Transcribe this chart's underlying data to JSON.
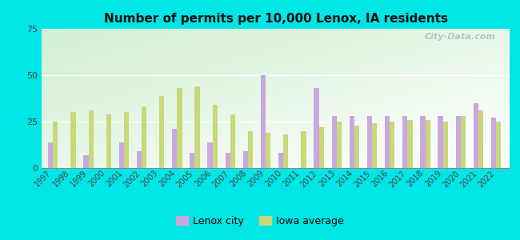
{
  "title": "Number of permits per 10,000 Lenox, IA residents",
  "years": [
    1997,
    1998,
    1999,
    2000,
    2001,
    2002,
    2003,
    2004,
    2005,
    2006,
    2007,
    2008,
    2009,
    2010,
    2011,
    2012,
    2013,
    2014,
    2015,
    2016,
    2017,
    2018,
    2019,
    2020,
    2021,
    2022
  ],
  "lenox": [
    14,
    0,
    7,
    0,
    14,
    9,
    0,
    21,
    8,
    14,
    8,
    9,
    50,
    8,
    0,
    43,
    28,
    28,
    28,
    28,
    28,
    28,
    28,
    28,
    35,
    27
  ],
  "iowa": [
    25,
    30,
    31,
    29,
    30,
    33,
    39,
    43,
    44,
    34,
    29,
    20,
    19,
    18,
    20,
    22,
    25,
    23,
    24,
    25,
    26,
    26,
    25,
    28,
    31,
    25
  ],
  "lenox_color": "#c9a8e0",
  "iowa_color": "#c8d87a",
  "outer_bg": "#00e5e5",
  "ylim": [
    0,
    75
  ],
  "yticks": [
    0,
    25,
    50,
    75
  ],
  "legend_lenox": "Lenox city",
  "legend_iowa": "Iowa average",
  "watermark": "City-Data.com"
}
